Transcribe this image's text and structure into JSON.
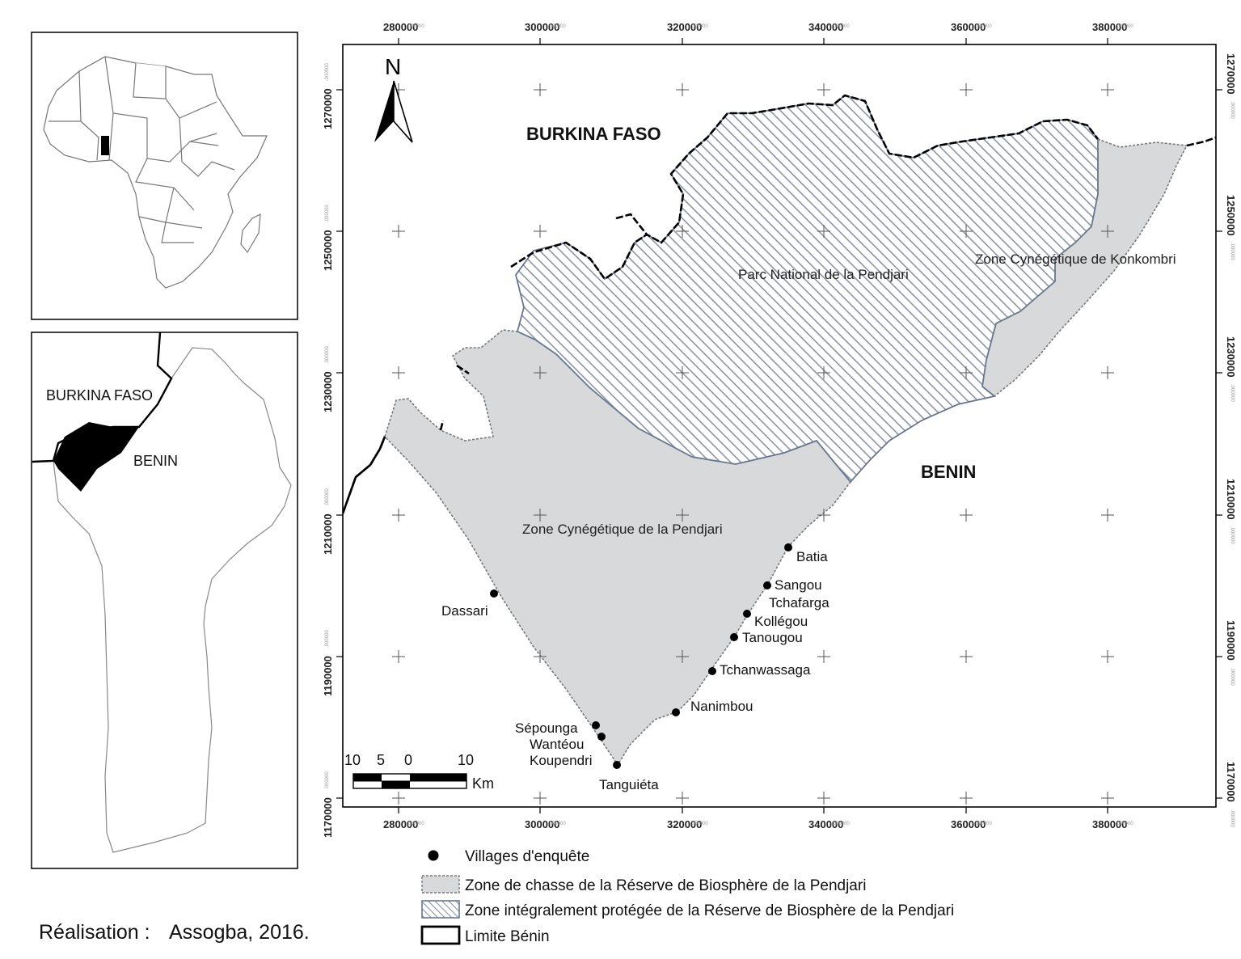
{
  "map": {
    "x_ticks": [
      "280000",
      "300000",
      "320000",
      "340000",
      "360000",
      "380000"
    ],
    "y_ticks": [
      "1270000",
      "1250000",
      "1230000",
      "1210000",
      "1190000",
      "1170000"
    ],
    "tick_decimals": ".000000",
    "countries": {
      "burkina": "BURKINA FASO",
      "benin": "BENIN"
    },
    "zones": {
      "parc": "Parc National de la Pendjari",
      "konkombri": "Zone Cynégétique de Konkombri",
      "zc_pendjari": "Zone Cynégétique de la Pendjari"
    },
    "north": "N",
    "villages": [
      {
        "name": "Batia"
      },
      {
        "name": "Sangou"
      },
      {
        "name": "Tchafarga"
      },
      {
        "name": "Kollégou"
      },
      {
        "name": "Tanougou"
      },
      {
        "name": "Tchanwassaga"
      },
      {
        "name": "Nanimbou"
      },
      {
        "name": "Dassari"
      },
      {
        "name": "Sépounga"
      },
      {
        "name": "Wantéou"
      },
      {
        "name": "Koupendri"
      },
      {
        "name": "Tanguiéta"
      }
    ],
    "scale": {
      "labels": [
        "10",
        "5",
        "0",
        "10"
      ],
      "unit": "Km"
    },
    "colors": {
      "hunting_zone": "#d8d9da",
      "hatch": "#8c94a6",
      "border": "#000000"
    }
  },
  "inset_benin": {
    "burkina": "BURKINA FASO",
    "benin": "BENIN"
  },
  "legend": {
    "items": [
      {
        "label": "Villages d'enquête",
        "symbol": "dot"
      },
      {
        "label": "Zone de chasse de la Réserve de Biosphère de la Pendjari",
        "symbol": "grey-fill"
      },
      {
        "label": "Zone intégralement protégée de la Réserve de Biosphère de la Pendjari",
        "symbol": "hatch"
      },
      {
        "label": "Limite Bénin",
        "symbol": "line"
      }
    ]
  },
  "credit": {
    "label": "Réalisation :",
    "value": "Assogba, 2016."
  }
}
